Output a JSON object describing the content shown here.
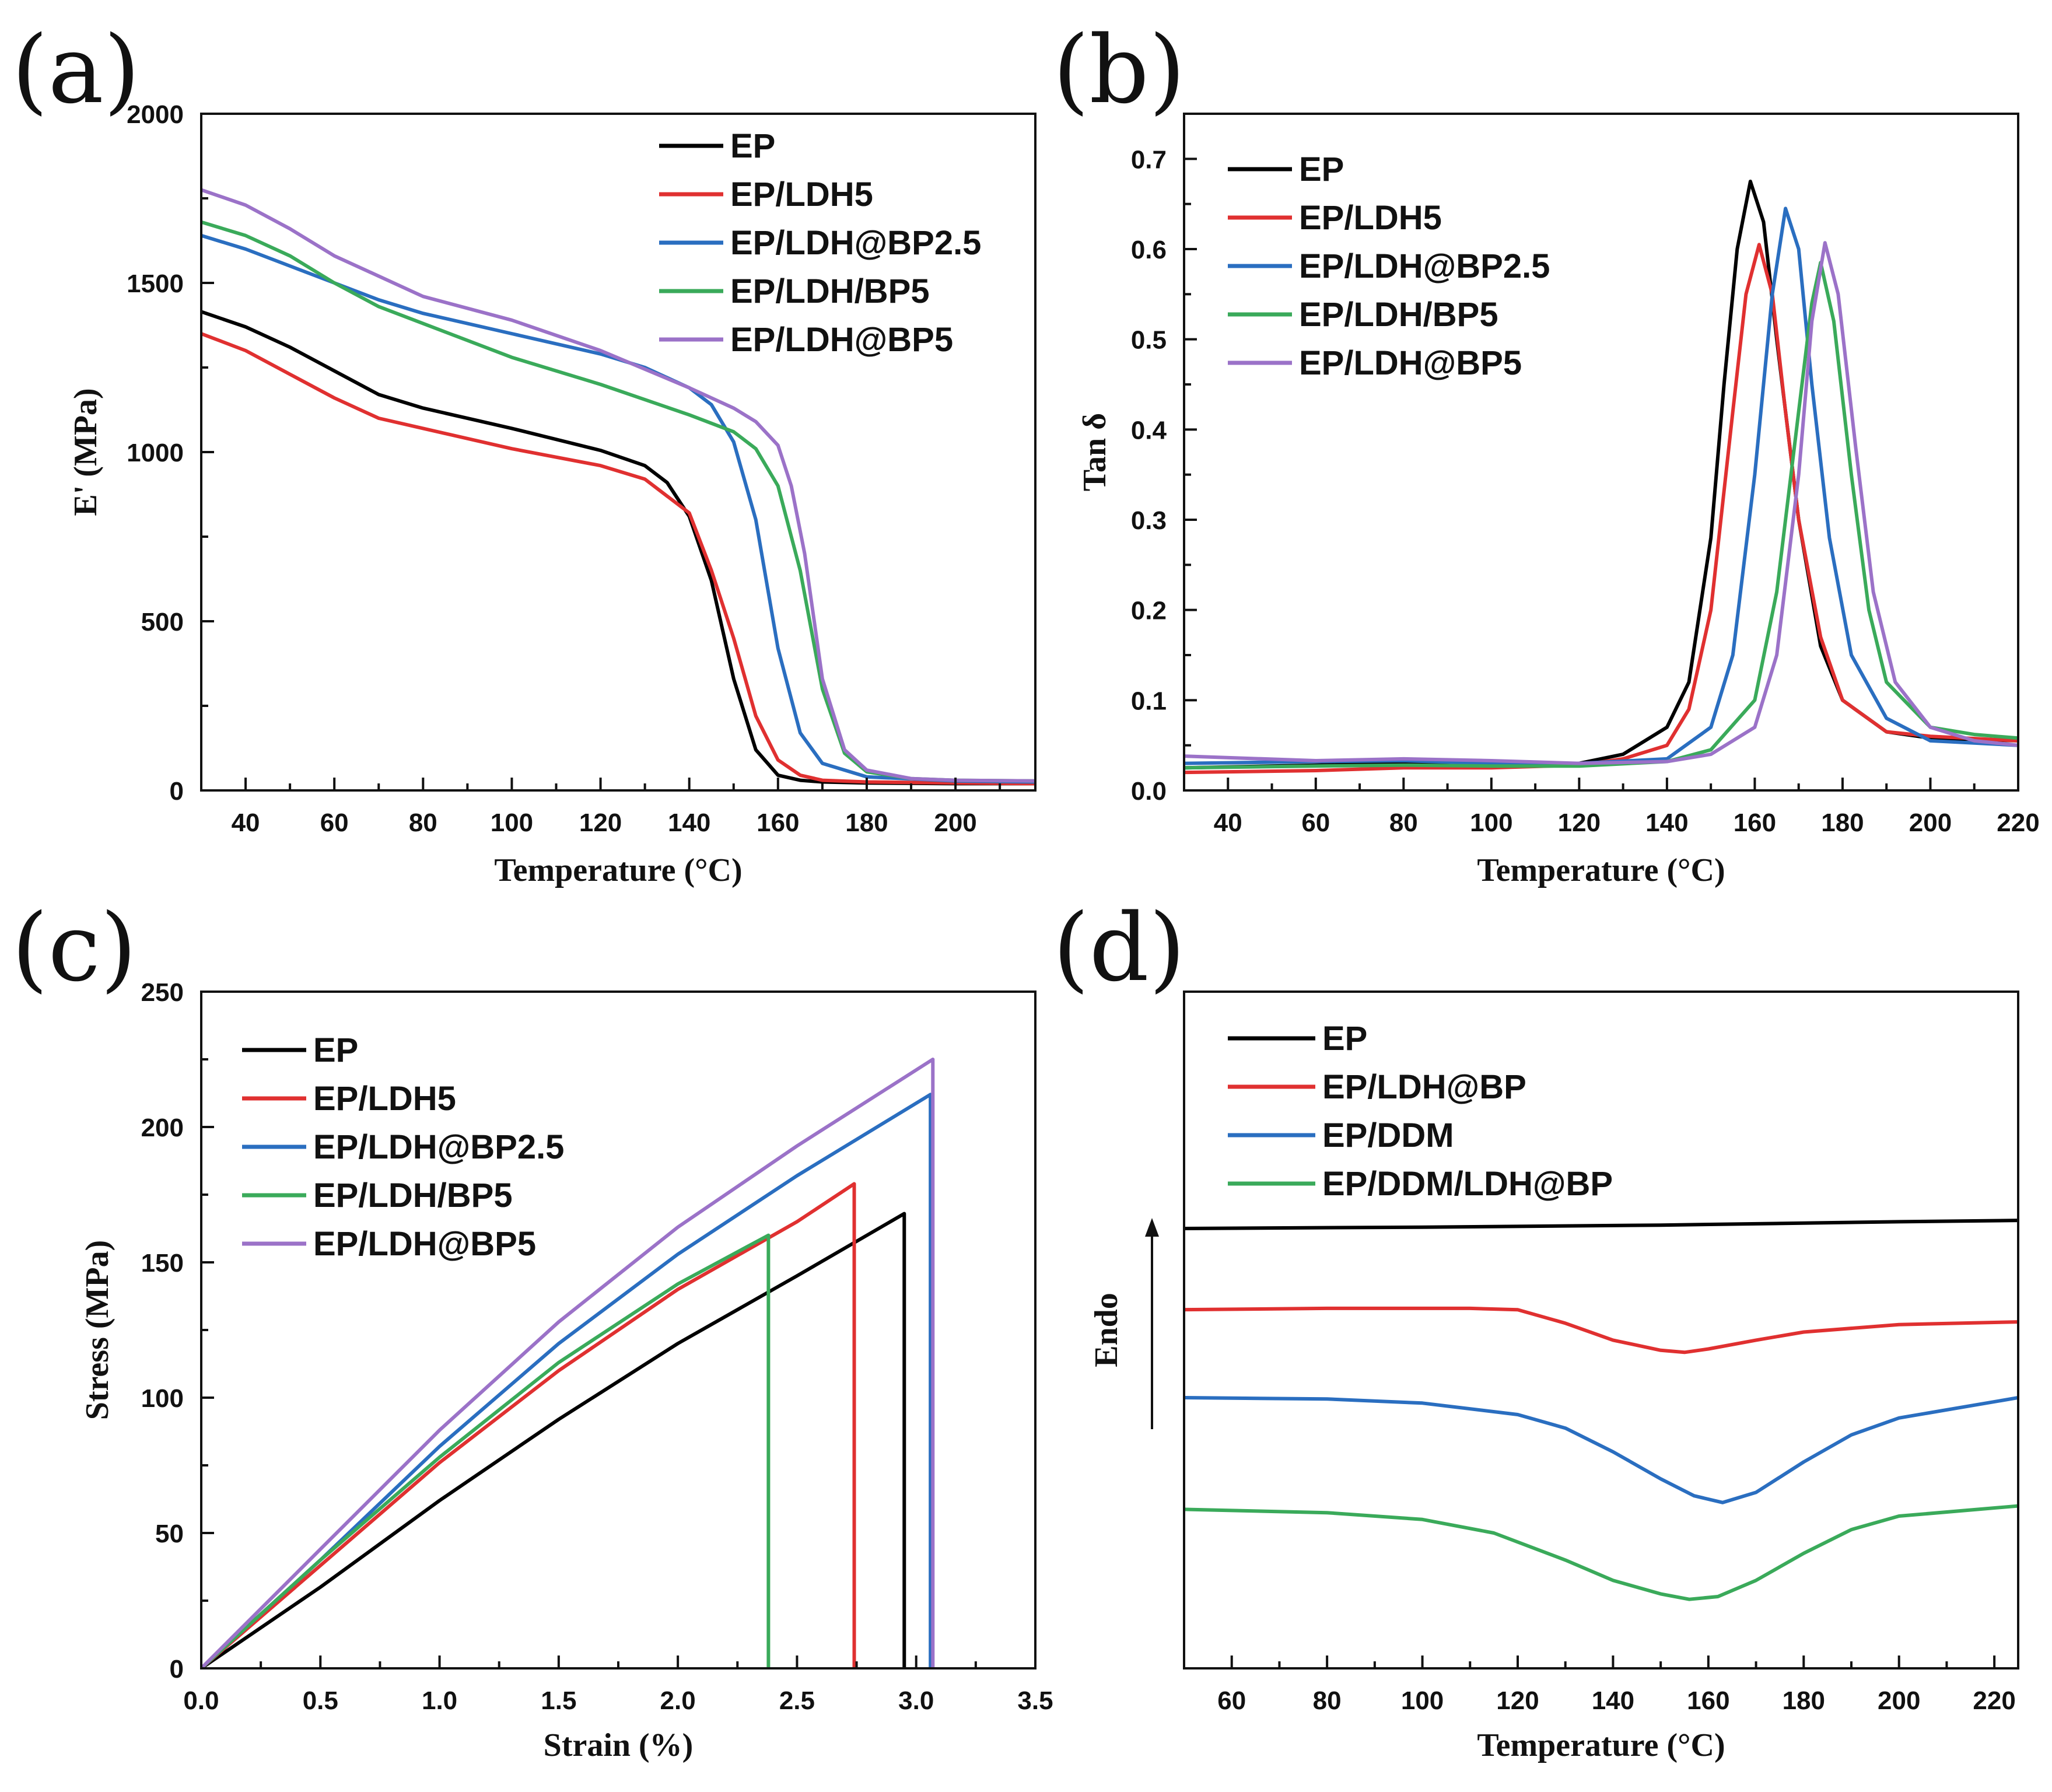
{
  "chart_data": [
    {
      "panel": "(a)",
      "type": "line",
      "xlabel": "Temperature (°C)",
      "ylabel": "E' (MPa)",
      "xlim": [
        30,
        218
      ],
      "ylim": [
        0,
        2000
      ],
      "xticks": [
        40,
        60,
        80,
        100,
        120,
        140,
        160,
        180,
        200
      ],
      "yticks": [
        0,
        500,
        1000,
        1500,
        2000
      ],
      "legend": "top-right",
      "series": [
        {
          "name": "EP",
          "color": "#000000",
          "x": [
            30,
            40,
            50,
            60,
            70,
            80,
            100,
            120,
            130,
            135,
            140,
            145,
            150,
            155,
            160,
            165,
            170,
            180,
            200,
            218
          ],
          "y": [
            1415,
            1370,
            1310,
            1240,
            1170,
            1130,
            1070,
            1005,
            960,
            910,
            810,
            620,
            330,
            120,
            45,
            30,
            25,
            22,
            20,
            20
          ]
        },
        {
          "name": "EP/LDH5",
          "color": "#e03030",
          "x": [
            30,
            40,
            50,
            60,
            70,
            80,
            100,
            120,
            130,
            140,
            145,
            150,
            155,
            160,
            165,
            170,
            180,
            200,
            218
          ],
          "y": [
            1350,
            1300,
            1230,
            1160,
            1100,
            1070,
            1010,
            960,
            920,
            820,
            650,
            450,
            220,
            90,
            45,
            30,
            25,
            22,
            20
          ]
        },
        {
          "name": "EP/LDH@BP2.5",
          "color": "#2a6ec0",
          "x": [
            30,
            40,
            50,
            60,
            70,
            80,
            100,
            120,
            130,
            140,
            145,
            150,
            155,
            160,
            165,
            170,
            180,
            200,
            218
          ],
          "y": [
            1640,
            1600,
            1550,
            1500,
            1450,
            1410,
            1350,
            1290,
            1250,
            1190,
            1140,
            1030,
            800,
            420,
            170,
            80,
            40,
            28,
            25
          ]
        },
        {
          "name": "EP/LDH/BP5",
          "color": "#3aaa5a",
          "x": [
            30,
            40,
            50,
            60,
            70,
            80,
            100,
            120,
            140,
            150,
            155,
            160,
            165,
            170,
            175,
            180,
            190,
            200,
            218
          ],
          "y": [
            1680,
            1640,
            1580,
            1500,
            1430,
            1380,
            1280,
            1200,
            1110,
            1060,
            1010,
            900,
            650,
            300,
            110,
            55,
            35,
            30,
            28
          ]
        },
        {
          "name": "EP/LDH@BP5",
          "color": "#9b72c8",
          "x": [
            30,
            40,
            50,
            60,
            70,
            80,
            100,
            120,
            140,
            150,
            155,
            160,
            163,
            166,
            170,
            175,
            180,
            190,
            200,
            218
          ],
          "y": [
            1775,
            1730,
            1660,
            1580,
            1520,
            1460,
            1390,
            1300,
            1190,
            1130,
            1090,
            1020,
            900,
            700,
            330,
            120,
            60,
            35,
            30,
            28
          ]
        }
      ]
    },
    {
      "panel": "(b)",
      "type": "line",
      "xlabel": "Temperature (°C)",
      "ylabel": "Tan δ",
      "xlim": [
        30,
        220
      ],
      "ylim": [
        0,
        0.75
      ],
      "xticks": [
        40,
        60,
        80,
        100,
        120,
        140,
        160,
        180,
        200,
        220
      ],
      "yticks": [
        0.0,
        0.1,
        0.2,
        0.3,
        0.4,
        0.5,
        0.6,
        0.7
      ],
      "legend": "top-left",
      "series": [
        {
          "name": "EP",
          "color": "#000000",
          "x": [
            30,
            60,
            80,
            100,
            120,
            130,
            140,
            145,
            150,
            153,
            156,
            159,
            162,
            165,
            170,
            175,
            180,
            190,
            200,
            220
          ],
          "y": [
            0.025,
            0.028,
            0.03,
            0.03,
            0.03,
            0.04,
            0.07,
            0.12,
            0.28,
            0.45,
            0.6,
            0.675,
            0.63,
            0.5,
            0.3,
            0.16,
            0.1,
            0.065,
            0.058,
            0.055
          ]
        },
        {
          "name": "EP/LDH5",
          "color": "#e03030",
          "x": [
            30,
            60,
            80,
            100,
            120,
            130,
            140,
            145,
            150,
            155,
            158,
            161,
            164,
            167,
            170,
            175,
            180,
            190,
            200,
            220
          ],
          "y": [
            0.02,
            0.022,
            0.025,
            0.025,
            0.028,
            0.035,
            0.05,
            0.09,
            0.2,
            0.42,
            0.55,
            0.605,
            0.55,
            0.42,
            0.3,
            0.17,
            0.1,
            0.065,
            0.06,
            0.055
          ]
        },
        {
          "name": "EP/LDH@BP2.5",
          "color": "#2a6ec0",
          "x": [
            30,
            60,
            80,
            100,
            120,
            140,
            150,
            155,
            160,
            164,
            167,
            170,
            173,
            177,
            182,
            190,
            200,
            220
          ],
          "y": [
            0.03,
            0.032,
            0.033,
            0.03,
            0.03,
            0.035,
            0.07,
            0.15,
            0.35,
            0.55,
            0.645,
            0.6,
            0.45,
            0.28,
            0.15,
            0.08,
            0.055,
            0.05
          ]
        },
        {
          "name": "EP/LDH/BP5",
          "color": "#3aaa5a",
          "x": [
            30,
            60,
            80,
            100,
            120,
            140,
            150,
            160,
            165,
            170,
            173,
            175,
            178,
            182,
            186,
            190,
            200,
            210,
            220
          ],
          "y": [
            0.025,
            0.027,
            0.028,
            0.027,
            0.027,
            0.032,
            0.045,
            0.1,
            0.22,
            0.42,
            0.54,
            0.585,
            0.52,
            0.35,
            0.2,
            0.12,
            0.07,
            0.062,
            0.058
          ]
        },
        {
          "name": "EP/LDH@BP5",
          "color": "#9b72c8",
          "x": [
            30,
            60,
            80,
            100,
            120,
            140,
            150,
            160,
            165,
            170,
            173,
            176,
            179,
            183,
            187,
            192,
            200,
            210,
            220
          ],
          "y": [
            0.038,
            0.033,
            0.035,
            0.033,
            0.03,
            0.032,
            0.04,
            0.07,
            0.15,
            0.35,
            0.52,
            0.607,
            0.55,
            0.38,
            0.22,
            0.12,
            0.07,
            0.055,
            0.05
          ]
        }
      ]
    },
    {
      "panel": "(c)",
      "type": "line",
      "xlabel": "Strain (%)",
      "ylabel": "Stress (MPa)",
      "xlim": [
        0,
        3.5
      ],
      "ylim": [
        0,
        250
      ],
      "xticks": [
        "0.0",
        "0.5",
        "1.0",
        "1.5",
        "2.0",
        "2.5",
        "3.0",
        "3.5"
      ],
      "yticks": [
        0,
        50,
        100,
        150,
        200,
        250
      ],
      "legend": "top-left",
      "series": [
        {
          "name": "EP",
          "color": "#000000",
          "x": [
            0,
            0.5,
            1.0,
            1.5,
            2.0,
            2.5,
            2.95,
            2.95
          ],
          "y": [
            0,
            30,
            62,
            92,
            120,
            145,
            168,
            0
          ]
        },
        {
          "name": "EP/LDH5",
          "color": "#e03030",
          "x": [
            0,
            0.5,
            1.0,
            1.5,
            2.0,
            2.5,
            2.74,
            2.74
          ],
          "y": [
            0,
            38,
            76,
            110,
            140,
            165,
            179,
            0
          ]
        },
        {
          "name": "EP/LDH@BP2.5",
          "color": "#2a6ec0",
          "x": [
            0,
            0.5,
            1.0,
            1.5,
            2.0,
            2.5,
            3.06,
            3.06
          ],
          "y": [
            0,
            40,
            82,
            120,
            153,
            182,
            212,
            0
          ]
        },
        {
          "name": "EP/LDH/BP5",
          "color": "#3aaa5a",
          "x": [
            0,
            0.5,
            1.0,
            1.5,
            2.0,
            2.38,
            2.38
          ],
          "y": [
            0,
            40,
            78,
            113,
            142,
            160,
            0
          ]
        },
        {
          "name": "EP/LDH@BP5",
          "color": "#9b72c8",
          "x": [
            0,
            0.5,
            1.0,
            1.5,
            2.0,
            2.5,
            3.07,
            3.07
          ],
          "y": [
            0,
            44,
            88,
            128,
            163,
            193,
            225,
            0
          ]
        }
      ]
    },
    {
      "panel": "(d)",
      "type": "line",
      "xlabel": "Temperature (°C)",
      "ylabel": "Endo",
      "xlim": [
        50,
        225
      ],
      "ylim": [
        0,
        10
      ],
      "xticks": [
        60,
        80,
        100,
        120,
        140,
        160,
        180,
        200,
        220
      ],
      "yticks": [],
      "legend": "top-left",
      "series": [
        {
          "name": "EP",
          "color": "#000000",
          "x": [
            50,
            100,
            150,
            200,
            225
          ],
          "y": [
            6.5,
            6.52,
            6.55,
            6.6,
            6.62
          ]
        },
        {
          "name": "EP/LDH@BP",
          "color": "#e03030",
          "x": [
            50,
            80,
            110,
            120,
            130,
            140,
            150,
            155,
            160,
            170,
            180,
            200,
            225
          ],
          "y": [
            5.3,
            5.32,
            5.32,
            5.3,
            5.1,
            4.85,
            4.7,
            4.67,
            4.72,
            4.85,
            4.97,
            5.08,
            5.12
          ]
        },
        {
          "name": "EP/DDM",
          "color": "#2a6ec0",
          "x": [
            50,
            80,
            100,
            120,
            130,
            140,
            150,
            157,
            163,
            170,
            180,
            190,
            200,
            225
          ],
          "y": [
            4.0,
            3.98,
            3.92,
            3.75,
            3.55,
            3.2,
            2.8,
            2.55,
            2.45,
            2.6,
            3.05,
            3.45,
            3.7,
            4.0
          ]
        },
        {
          "name": "EP/DDM/LDH@BP",
          "color": "#3aaa5a",
          "x": [
            50,
            80,
            100,
            115,
            130,
            140,
            150,
            156,
            162,
            170,
            180,
            190,
            200,
            225
          ],
          "y": [
            2.35,
            2.3,
            2.2,
            2.0,
            1.6,
            1.3,
            1.1,
            1.02,
            1.06,
            1.3,
            1.7,
            2.05,
            2.25,
            2.4
          ]
        }
      ]
    }
  ]
}
